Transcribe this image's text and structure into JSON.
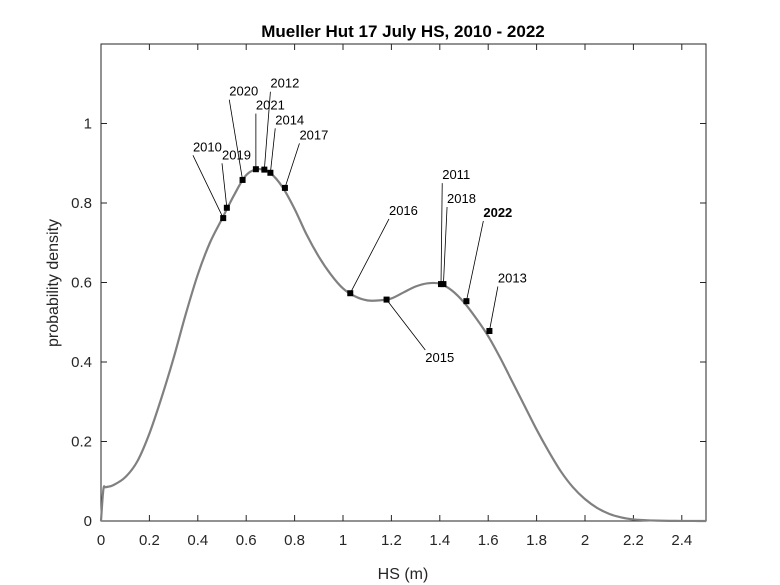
{
  "chart_data": {
    "type": "line",
    "title": "Mueller Hut 17 July HS, 2010 - 2022",
    "xlabel": "HS (m)",
    "ylabel": "probability density",
    "xlim": [
      0,
      2.5
    ],
    "ylim": [
      0,
      1.2
    ],
    "xticks": [
      0,
      0.2,
      0.4,
      0.6,
      0.8,
      1,
      1.2,
      1.4,
      1.6,
      1.8,
      2,
      2.2,
      2.4
    ],
    "yticks": [
      0,
      0.2,
      0.4,
      0.6,
      0.8,
      1
    ],
    "xtick_labels": [
      "0",
      "0.2",
      "0.4",
      "0.6",
      "0.8",
      "1",
      "1.2",
      "1.4",
      "1.6",
      "1.8",
      "2",
      "2.2",
      "2.4"
    ],
    "ytick_labels": [
      "0",
      "0.2",
      "0.4",
      "0.6",
      "0.8",
      "1"
    ],
    "grid": false,
    "line_color": "#808080",
    "marker_color": "#000000",
    "series": [
      {
        "x": [
          0,
          0.01,
          0.02,
          0.05,
          0.1,
          0.15,
          0.2,
          0.25,
          0.3,
          0.35,
          0.4,
          0.45,
          0.5,
          0.55,
          0.6,
          0.65,
          0.7,
          0.75,
          0.8,
          0.85,
          0.9,
          0.95,
          1.0,
          1.05,
          1.1,
          1.15,
          1.2,
          1.25,
          1.3,
          1.35,
          1.4,
          1.45,
          1.5,
          1.55,
          1.6,
          1.65,
          1.7,
          1.75,
          1.8,
          1.85,
          1.9,
          1.95,
          2.0,
          2.05,
          2.1,
          2.15,
          2.2,
          2.25,
          2.3,
          2.35,
          2.4,
          2.45,
          2.5
        ],
        "values": [
          0,
          0.08,
          0.085,
          0.09,
          0.11,
          0.15,
          0.22,
          0.31,
          0.41,
          0.52,
          0.62,
          0.7,
          0.76,
          0.82,
          0.87,
          0.885,
          0.875,
          0.84,
          0.785,
          0.72,
          0.665,
          0.62,
          0.585,
          0.565,
          0.555,
          0.555,
          0.56,
          0.575,
          0.59,
          0.598,
          0.597,
          0.58,
          0.55,
          0.51,
          0.465,
          0.41,
          0.35,
          0.29,
          0.23,
          0.175,
          0.125,
          0.085,
          0.055,
          0.033,
          0.018,
          0.009,
          0.004,
          0.002,
          0.001,
          0.0004,
          0.0002,
          0.0001,
          0
        ]
      }
    ],
    "points": [
      {
        "year": "2010",
        "x": 0.505,
        "y": 0.762,
        "label_x": 0.38,
        "label_y": 0.93,
        "bold": false
      },
      {
        "year": "2019",
        "x": 0.52,
        "y": 0.788,
        "label_x": 0.5,
        "label_y": 0.91,
        "bold": false
      },
      {
        "year": "2020",
        "x": 0.585,
        "y": 0.858,
        "label_x": 0.53,
        "label_y": 1.07,
        "bold": false
      },
      {
        "year": "2021",
        "x": 0.64,
        "y": 0.885,
        "label_x": 0.64,
        "label_y": 1.035,
        "bold": false
      },
      {
        "year": "2012",
        "x": 0.675,
        "y": 0.884,
        "label_x": 0.7,
        "label_y": 1.09,
        "bold": false
      },
      {
        "year": "2014",
        "x": 0.7,
        "y": 0.876,
        "label_x": 0.72,
        "label_y": 0.998,
        "bold": false
      },
      {
        "year": "2017",
        "x": 0.76,
        "y": 0.838,
        "label_x": 0.82,
        "label_y": 0.96,
        "bold": false
      },
      {
        "year": "2016",
        "x": 1.03,
        "y": 0.573,
        "label_x": 1.19,
        "label_y": 0.77,
        "bold": false
      },
      {
        "year": "2015",
        "x": 1.18,
        "y": 0.557,
        "label_x": 1.34,
        "label_y": 0.4,
        "bold": false
      },
      {
        "year": "2011",
        "x": 1.405,
        "y": 0.596,
        "label_x": 1.41,
        "label_y": 0.86,
        "bold": false
      },
      {
        "year": "2018",
        "x": 1.415,
        "y": 0.596,
        "label_x": 1.43,
        "label_y": 0.8,
        "bold": false
      },
      {
        "year": "2022",
        "x": 1.51,
        "y": 0.553,
        "label_x": 1.58,
        "label_y": 0.765,
        "bold": true
      },
      {
        "year": "2013",
        "x": 1.605,
        "y": 0.478,
        "label_x": 1.64,
        "label_y": 0.6,
        "bold": false
      }
    ]
  }
}
